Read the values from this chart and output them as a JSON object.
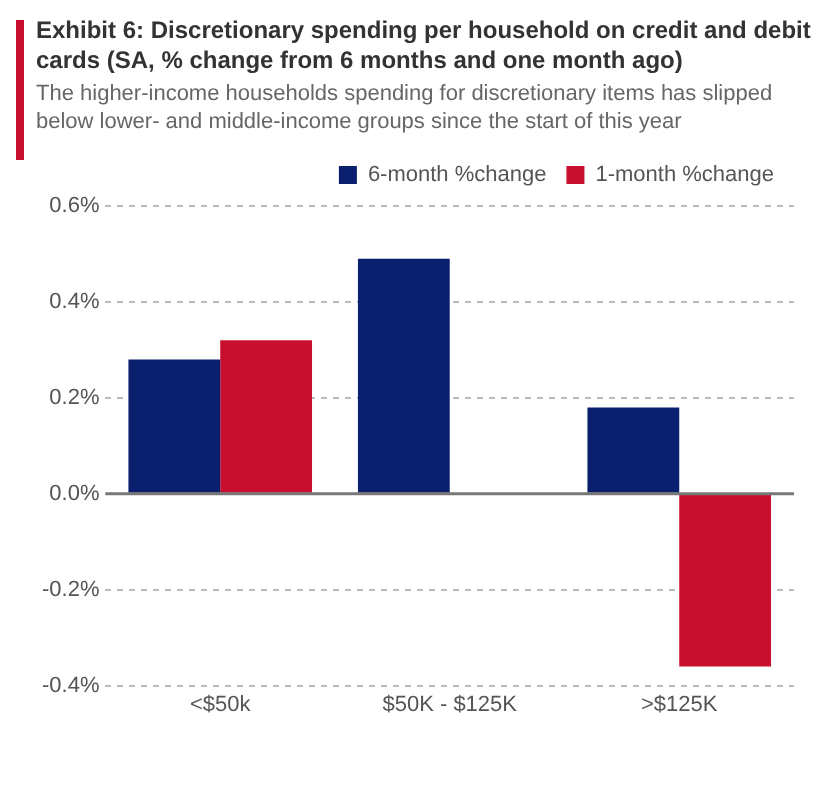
{
  "chart_data": {
    "type": "bar",
    "title": "Exhibit 6: Discretionary spending per household on credit and debit cards (SA, % change from 6 months and one month ago)",
    "subtitle": "The higher-income households spending for discretionary items has slipped below lower- and middle-income groups since the start of this year",
    "categories": [
      "<$50k",
      "$50K - $125K",
      ">$125K"
    ],
    "series": [
      {
        "name": "6-month %change",
        "color": "#0a1f6e",
        "values": [
          0.28,
          0.49,
          0.18
        ]
      },
      {
        "name": "1-month %change",
        "color": "#c8102e",
        "values": [
          0.32,
          null,
          -0.36
        ]
      }
    ],
    "ylim": [
      -0.4,
      0.6
    ],
    "yticks": [
      {
        "value": -0.4,
        "label": "-0.4%"
      },
      {
        "value": -0.2,
        "label": "-0.2%"
      },
      {
        "value": 0,
        "label": "0.0%"
      },
      {
        "value": 0.2,
        "label": "0.2%"
      },
      {
        "value": 0.4,
        "label": "0.4%"
      },
      {
        "value": 0.6,
        "label": "0.6%"
      }
    ],
    "ref_lines": [
      {
        "axis": "y",
        "value": 0,
        "color": "#777777"
      }
    ],
    "grid": "y",
    "legend": "top right"
  }
}
